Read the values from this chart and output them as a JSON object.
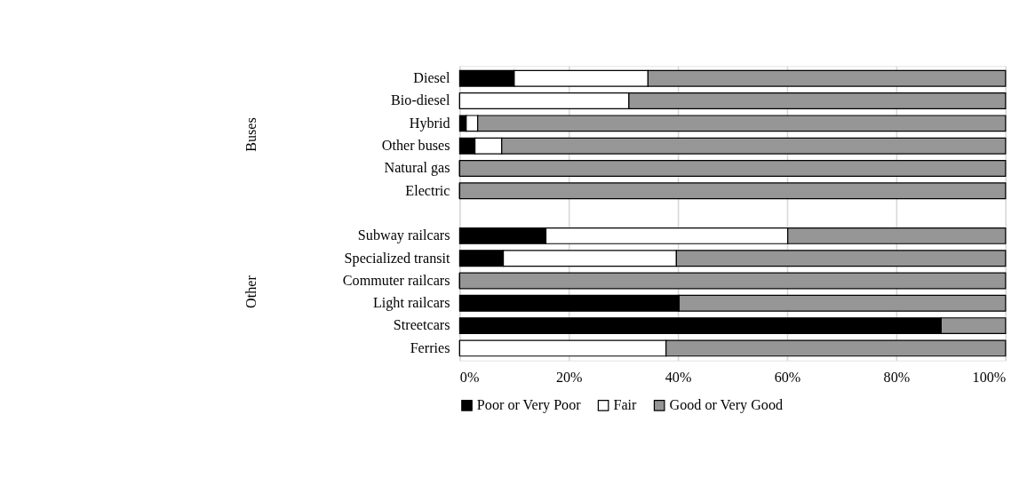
{
  "chart_data": {
    "type": "bar",
    "orientation": "horizontal",
    "stacked": true,
    "categories": [
      "Diesel",
      "Bio-diesel",
      "Hybrid",
      "Other buses",
      "Natural gas",
      "Electric",
      null,
      "Subway railcars",
      "Specialized transit",
      "Commuter railcars",
      "Light railcars",
      "Streetcars",
      "Ferries"
    ],
    "series": [
      {
        "name": "Poor or Very Poor",
        "color": "#000000",
        "values": [
          10,
          0,
          1.2,
          2.8,
          0,
          0,
          null,
          15.8,
          8,
          0,
          40.2,
          88.2,
          0
        ]
      },
      {
        "name": "Fair",
        "color": "#ffffff",
        "values": [
          24.5,
          31,
          2.1,
          4.9,
          0,
          0,
          null,
          44.3,
          31.7,
          0,
          0,
          0,
          37.8
        ]
      },
      {
        "name": "Good or Very Good",
        "color": "#969696",
        "values": [
          65.5,
          69,
          96.7,
          92.3,
          100,
          100,
          null,
          39.9,
          60.3,
          100,
          59.8,
          11.8,
          62.2
        ]
      }
    ],
    "xlim": [
      0,
      100
    ],
    "xticks": [
      {
        "value": 0,
        "label": "0%"
      },
      {
        "value": 20,
        "label": "20%"
      },
      {
        "value": 40,
        "label": "40%"
      },
      {
        "value": 60,
        "label": "60%"
      },
      {
        "value": 80,
        "label": "80%"
      },
      {
        "value": 100,
        "label": "100%"
      }
    ],
    "grid": "x",
    "legend": "bottom",
    "annotations": [
      "Buses",
      "Other"
    ]
  }
}
